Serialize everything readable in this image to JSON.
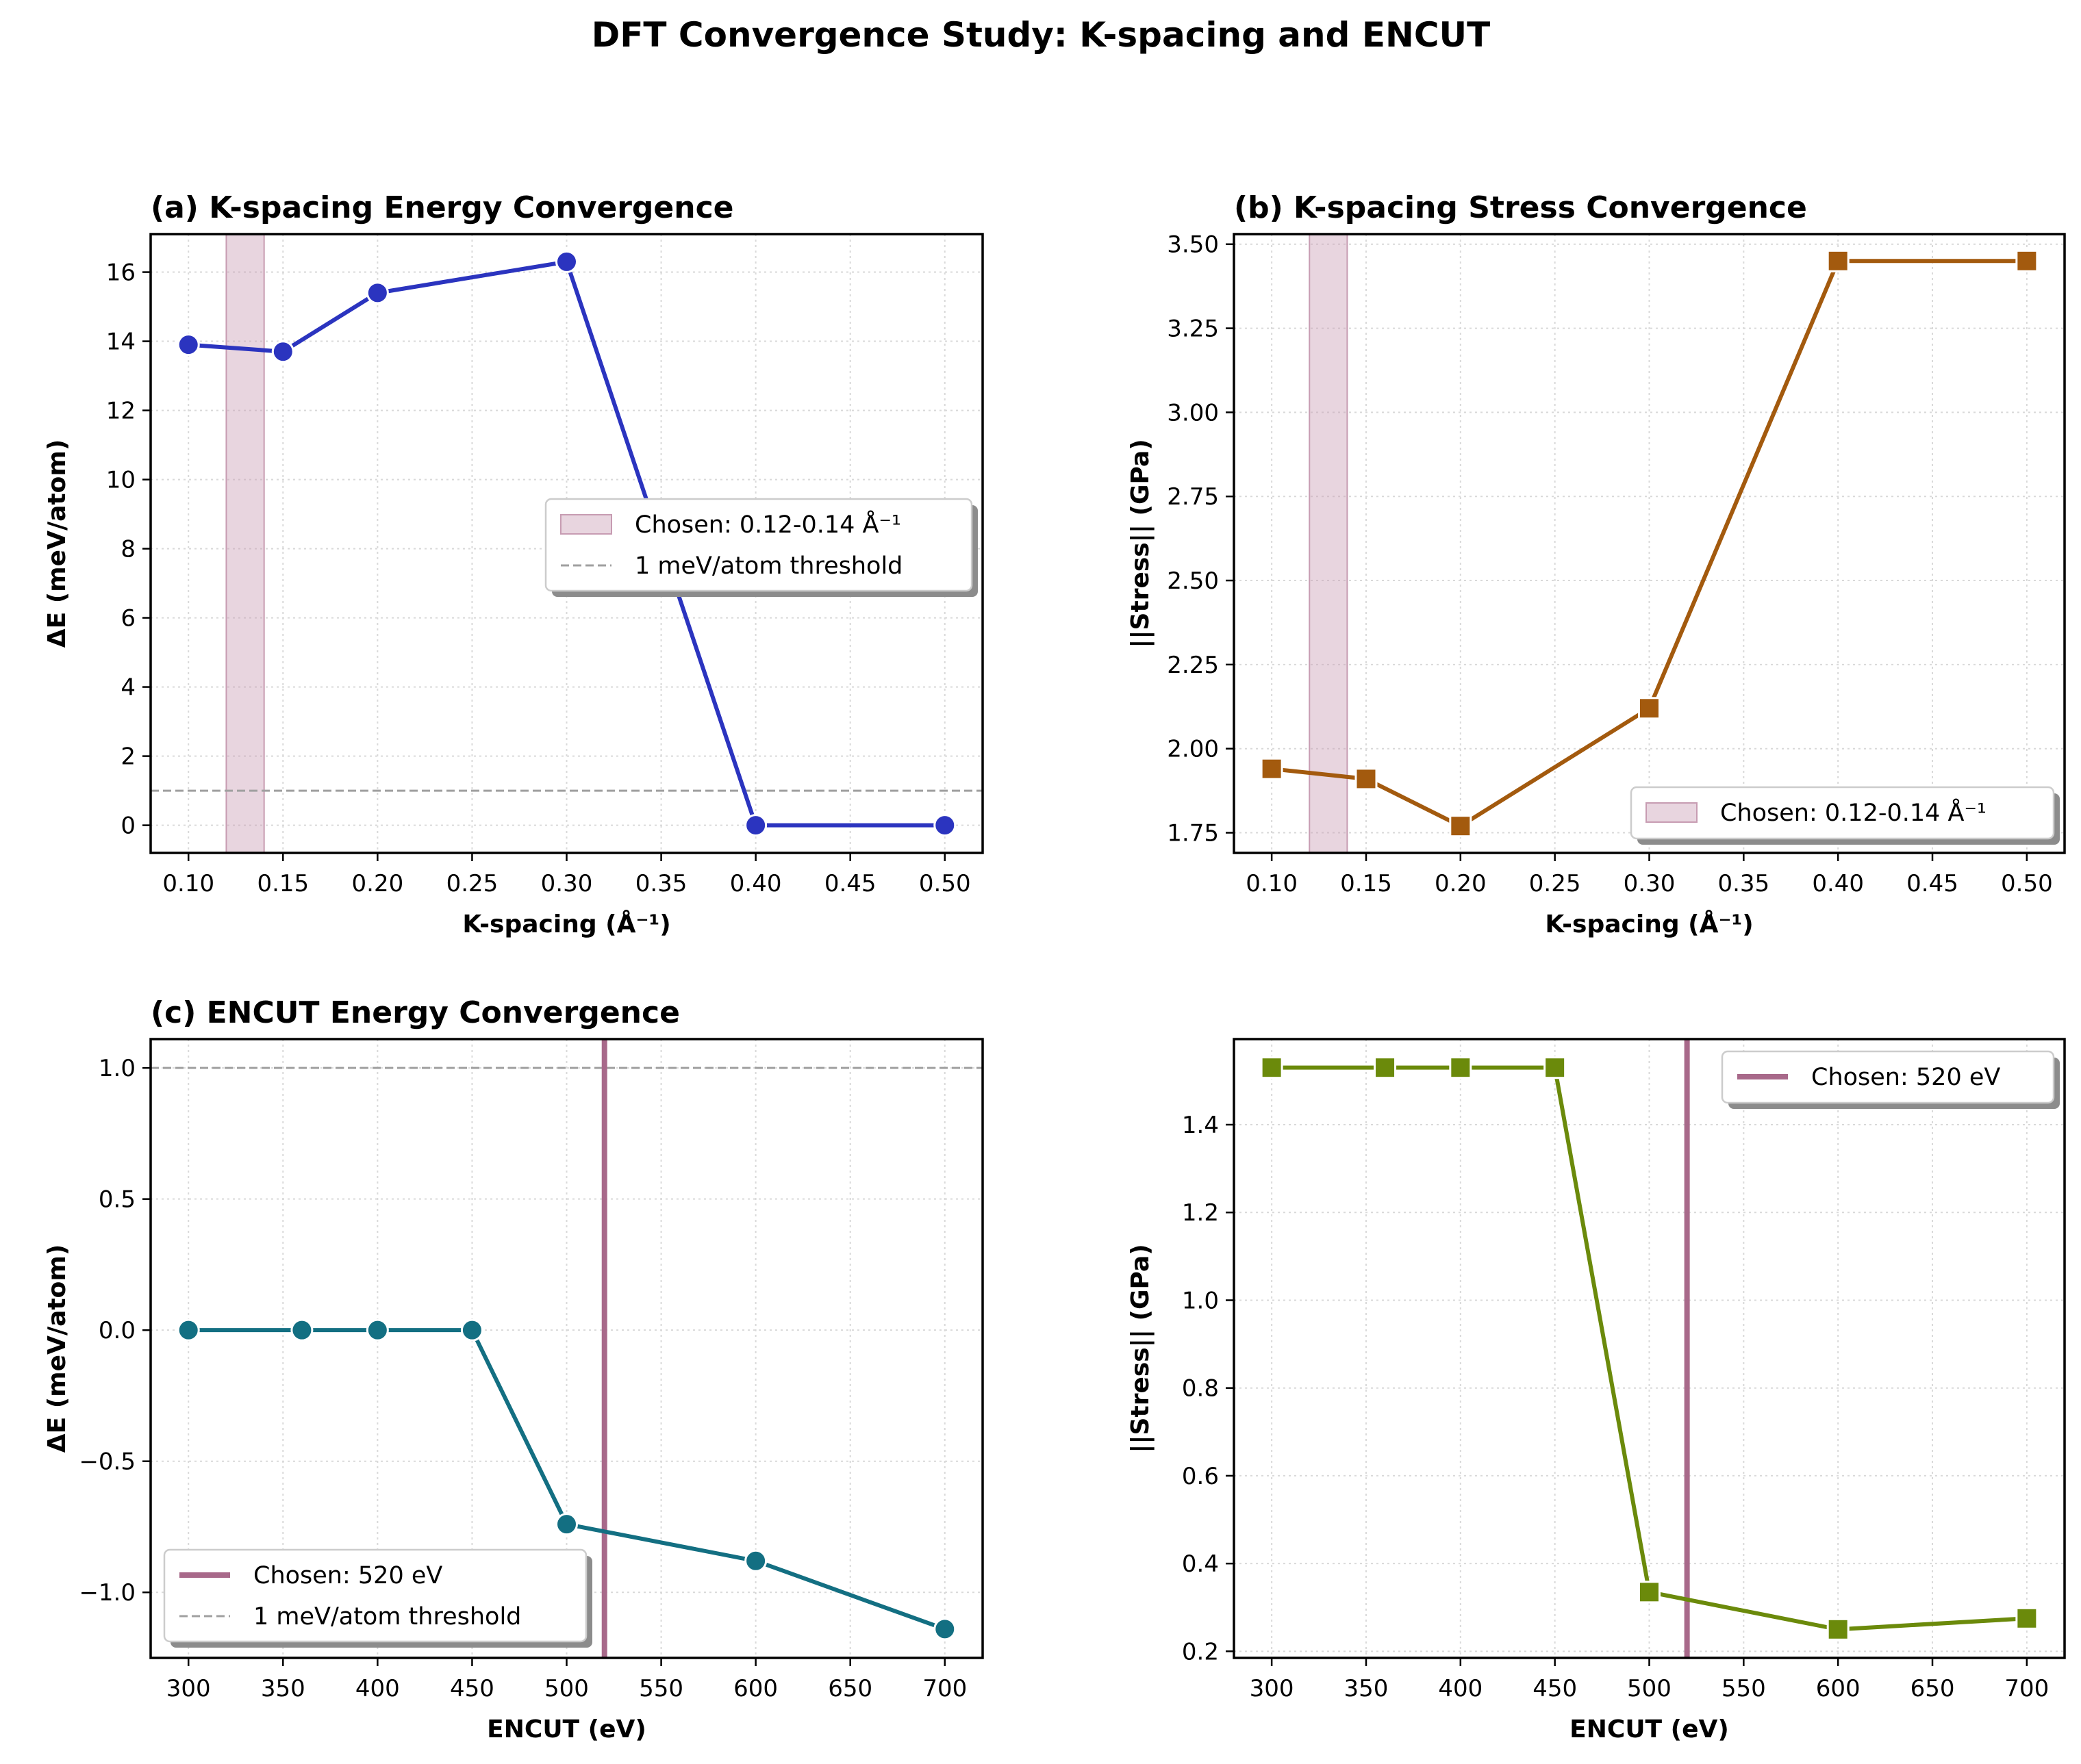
{
  "figure": {
    "suptitle": "DFT Convergence Study: K-spacing and ENCUT"
  },
  "chart_data": [
    {
      "id": "a",
      "type": "line",
      "title": "(a) K-spacing Energy Convergence",
      "xlabel": "K-spacing (Å⁻¹)",
      "ylabel": "ΔE (meV/atom)",
      "xlim": [
        0.08,
        0.52
      ],
      "ylim": [
        -0.8,
        17.1
      ],
      "xticks": [
        0.1,
        0.15,
        0.2,
        0.25,
        0.3,
        0.35,
        0.4,
        0.45,
        0.5
      ],
      "xtick_labels": [
        "0.10",
        "0.15",
        "0.20",
        "0.25",
        "0.30",
        "0.35",
        "0.40",
        "0.45",
        "0.50"
      ],
      "yticks": [
        0,
        2,
        4,
        6,
        8,
        10,
        12,
        14,
        16
      ],
      "ytick_labels": [
        "0",
        "2",
        "4",
        "6",
        "8",
        "10",
        "12",
        "14",
        "16"
      ],
      "grid": true,
      "marker": "circle",
      "color": "#2b34bf",
      "x": [
        0.1,
        0.15,
        0.2,
        0.3,
        0.4,
        0.5
      ],
      "y": [
        13.9,
        13.7,
        15.4,
        16.3,
        0.0,
        0.0
      ],
      "span": {
        "x0": 0.12,
        "x1": 0.14,
        "label": "Chosen: 0.12-0.14 Å⁻¹",
        "color": "#c79cb2"
      },
      "hline": {
        "y": 1.0,
        "label": "1 meV/atom threshold",
        "color": "#a0a0a0"
      },
      "legend": {
        "position": "center-right",
        "entries": [
          "Chosen: 0.12-0.14 Å⁻¹",
          "1 meV/atom threshold"
        ]
      }
    },
    {
      "id": "b",
      "type": "line",
      "title": "(b) K-spacing Stress Convergence",
      "xlabel": "K-spacing (Å⁻¹)",
      "ylabel": "||Stress|| (GPa)",
      "xlim": [
        0.08,
        0.52
      ],
      "ylim": [
        1.69,
        3.53
      ],
      "xticks": [
        0.1,
        0.15,
        0.2,
        0.25,
        0.3,
        0.35,
        0.4,
        0.45,
        0.5
      ],
      "xtick_labels": [
        "0.10",
        "0.15",
        "0.20",
        "0.25",
        "0.30",
        "0.35",
        "0.40",
        "0.45",
        "0.50"
      ],
      "yticks": [
        1.75,
        2.0,
        2.25,
        2.5,
        2.75,
        3.0,
        3.25,
        3.5
      ],
      "ytick_labels": [
        "1.75",
        "2.00",
        "2.25",
        "2.50",
        "2.75",
        "3.00",
        "3.25",
        "3.50"
      ],
      "grid": true,
      "marker": "square",
      "color": "#a35a0e",
      "x": [
        0.1,
        0.15,
        0.2,
        0.3,
        0.4,
        0.5
      ],
      "y": [
        1.94,
        1.91,
        1.77,
        2.12,
        3.45,
        3.45
      ],
      "span": {
        "x0": 0.12,
        "x1": 0.14,
        "label": "Chosen: 0.12-0.14 Å⁻¹",
        "color": "#c79cb2"
      },
      "legend": {
        "position": "lower-right",
        "entries": [
          "Chosen: 0.12-0.14 Å⁻¹"
        ]
      }
    },
    {
      "id": "c",
      "type": "line",
      "title": "(c) ENCUT Energy Convergence",
      "xlabel": "ENCUT (eV)",
      "ylabel": "ΔE (meV/atom)",
      "xlim": [
        280,
        720
      ],
      "ylim": [
        -1.25,
        1.11
      ],
      "xticks": [
        300,
        350,
        400,
        450,
        500,
        550,
        600,
        650,
        700
      ],
      "xtick_labels": [
        "300",
        "350",
        "400",
        "450",
        "500",
        "550",
        "600",
        "650",
        "700"
      ],
      "yticks": [
        -1.0,
        -0.5,
        0.0,
        0.5,
        1.0
      ],
      "ytick_labels": [
        "−1.0",
        "−0.5",
        "0.0",
        "0.5",
        "1.0"
      ],
      "grid": true,
      "marker": "circle",
      "color": "#136f82",
      "x": [
        300,
        360,
        400,
        450,
        500,
        600,
        700
      ],
      "y": [
        0.0,
        0.0,
        0.0,
        0.0,
        -0.74,
        -0.88,
        -1.14
      ],
      "vline": {
        "x": 520,
        "label": "Chosen: 520 eV",
        "color": "#a8698a"
      },
      "hline": {
        "y": 1.0,
        "label": "1 meV/atom threshold",
        "color": "#a0a0a0"
      },
      "legend": {
        "position": "lower-left",
        "entries": [
          "Chosen: 520 eV",
          "1 meV/atom threshold"
        ]
      }
    },
    {
      "id": "d",
      "type": "line",
      "title": "",
      "xlabel": "ENCUT (eV)",
      "ylabel": "||Stress|| (GPa)",
      "xlim": [
        280,
        720
      ],
      "ylim": [
        0.185,
        1.595
      ],
      "xticks": [
        300,
        350,
        400,
        450,
        500,
        550,
        600,
        650,
        700
      ],
      "xtick_labels": [
        "300",
        "350",
        "400",
        "450",
        "500",
        "550",
        "600",
        "650",
        "700"
      ],
      "yticks": [
        0.2,
        0.4,
        0.6,
        0.8,
        1.0,
        1.2,
        1.4
      ],
      "ytick_labels": [
        "0.2",
        "0.4",
        "0.6",
        "0.8",
        "1.0",
        "1.2",
        "1.4"
      ],
      "grid": true,
      "marker": "square",
      "color": "#6b8a0b",
      "x": [
        300,
        360,
        400,
        450,
        500,
        600,
        700
      ],
      "y": [
        1.53,
        1.53,
        1.53,
        1.53,
        0.335,
        0.25,
        0.275
      ],
      "vline": {
        "x": 520,
        "label": "Chosen: 520 eV",
        "color": "#a8698a"
      },
      "legend": {
        "position": "upper-right",
        "entries": [
          "Chosen: 520 eV"
        ]
      }
    }
  ]
}
